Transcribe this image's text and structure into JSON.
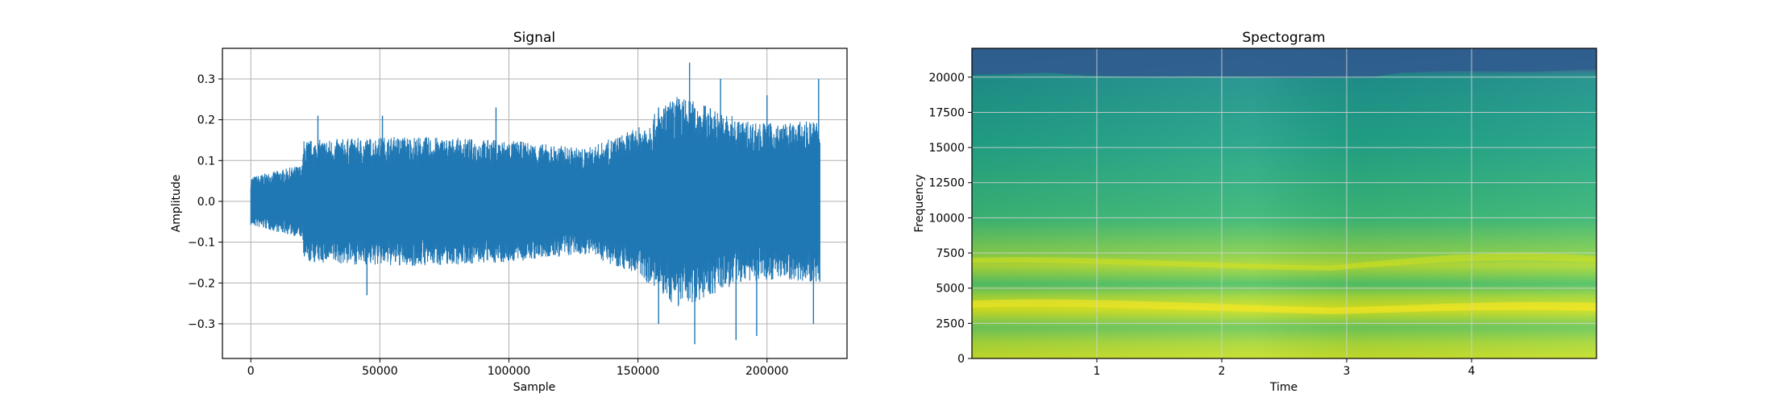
{
  "chart_data": [
    {
      "type": "line",
      "title": "Signal",
      "xlabel": "Sample",
      "ylabel": "Amplitude",
      "xlim": [
        -11000,
        231000
      ],
      "ylim": [
        -0.385,
        0.375
      ],
      "xticks": [
        0,
        50000,
        100000,
        150000,
        200000
      ],
      "xtick_labels": [
        "0",
        "50000",
        "100000",
        "150000",
        "200000"
      ],
      "yticks": [
        -0.3,
        -0.2,
        -0.1,
        0.0,
        0.1,
        0.2,
        0.3
      ],
      "ytick_labels": [
        "−0.3",
        "−0.2",
        "−0.1",
        "0.0",
        "0.1",
        "0.2",
        "0.3"
      ],
      "grid": true,
      "color": "#1f77b4",
      "envelope": {
        "x": [
          0,
          20000,
          20500,
          60000,
          100000,
          130000,
          150000,
          165000,
          175000,
          190000,
          205000,
          220500
        ],
        "y": [
          0.06,
          0.09,
          0.15,
          0.16,
          0.15,
          0.13,
          0.18,
          0.26,
          0.24,
          0.2,
          0.19,
          0.2
        ]
      },
      "peaks": [
        {
          "x": 26000,
          "y": 0.21
        },
        {
          "x": 51000,
          "y": 0.21
        },
        {
          "x": 95000,
          "y": 0.23
        },
        {
          "x": 158000,
          "y": 0.23
        },
        {
          "x": 170000,
          "y": 0.34
        },
        {
          "x": 182000,
          "y": 0.3
        },
        {
          "x": 200000,
          "y": 0.26
        },
        {
          "x": 220000,
          "y": 0.3
        },
        {
          "x": 45000,
          "y": -0.23
        },
        {
          "x": 158000,
          "y": -0.3
        },
        {
          "x": 172000,
          "y": -0.35
        },
        {
          "x": 188000,
          "y": -0.34
        },
        {
          "x": 196000,
          "y": -0.33
        },
        {
          "x": 218000,
          "y": -0.3
        }
      ]
    },
    {
      "type": "heatmap",
      "title": "Spectogram",
      "xlabel": "Time",
      "ylabel": "Frequency",
      "xlim": [
        0.0,
        5.0
      ],
      "ylim": [
        0,
        22050
      ],
      "xticks": [
        1,
        2,
        3,
        4
      ],
      "xtick_labels": [
        "1",
        "2",
        "3",
        "4"
      ],
      "yticks": [
        0,
        2500,
        5000,
        7500,
        10000,
        12500,
        15000,
        17500,
        20000
      ],
      "ytick_labels": [
        "0",
        "2500",
        "5000",
        "7500",
        "10000",
        "12500",
        "15000",
        "17500",
        "20000"
      ],
      "grid": true,
      "colormap": "viridis"
    }
  ]
}
